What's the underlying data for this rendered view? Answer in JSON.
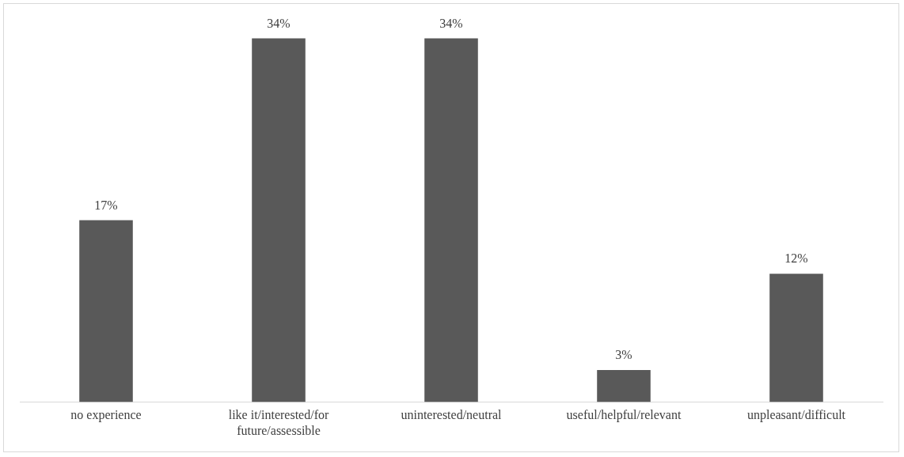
{
  "chart_data": {
    "type": "bar",
    "categories": [
      "no experience",
      "like it/interested/for future/assessible",
      "uninterested/neutral",
      "useful/helpful/relevant",
      "unpleasant/difficult"
    ],
    "values": [
      17,
      34,
      34,
      3,
      12
    ],
    "color": "#595959",
    "value_labels": [
      "17%",
      "34%",
      "34%",
      "3%",
      "12%"
    ],
    "tick_labels": "x",
    "grid": false,
    "legend": false
  }
}
